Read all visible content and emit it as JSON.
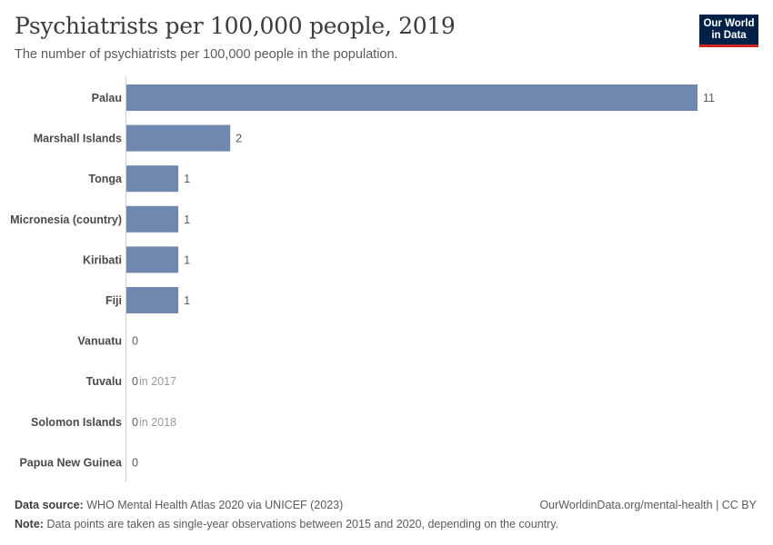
{
  "title": "Psychiatrists per 100,000 people, 2019",
  "subtitle": "The number of psychiatrists per 100,000 people in the population.",
  "logo": {
    "line1": "Our World",
    "line2": "in Data"
  },
  "chart_data": {
    "type": "bar",
    "orientation": "horizontal",
    "title": "Psychiatrists per 100,000 people, 2019",
    "xlabel": "",
    "ylabel": "",
    "xlim": [
      0,
      11
    ],
    "bar_color": "#7088b0",
    "categories": [
      "Palau",
      "Marshall Islands",
      "Tonga",
      "Micronesia (country)",
      "Kiribati",
      "Fiji",
      "Vanuatu",
      "Tuvalu",
      "Solomon Islands",
      "Papua New Guinea"
    ],
    "values": [
      11,
      2,
      1,
      1,
      1,
      1,
      0,
      0,
      0,
      0
    ],
    "value_labels": [
      "11",
      "2",
      "1",
      "1",
      "1",
      "1",
      "0",
      "0",
      "0",
      "0"
    ],
    "annotations": [
      "",
      "",
      "",
      "",
      "",
      "",
      "",
      "in 2017",
      "in 2018",
      ""
    ]
  },
  "footer": {
    "source_label": "Data source:",
    "source_text": "WHO Mental Health Atlas 2020 via UNICEF (2023)",
    "url_text": "OurWorldinData.org/mental-health | CC BY",
    "note_label": "Note:",
    "note_text": "Data points are taken as single-year observations between 2015 and 2020, depending on the country."
  }
}
